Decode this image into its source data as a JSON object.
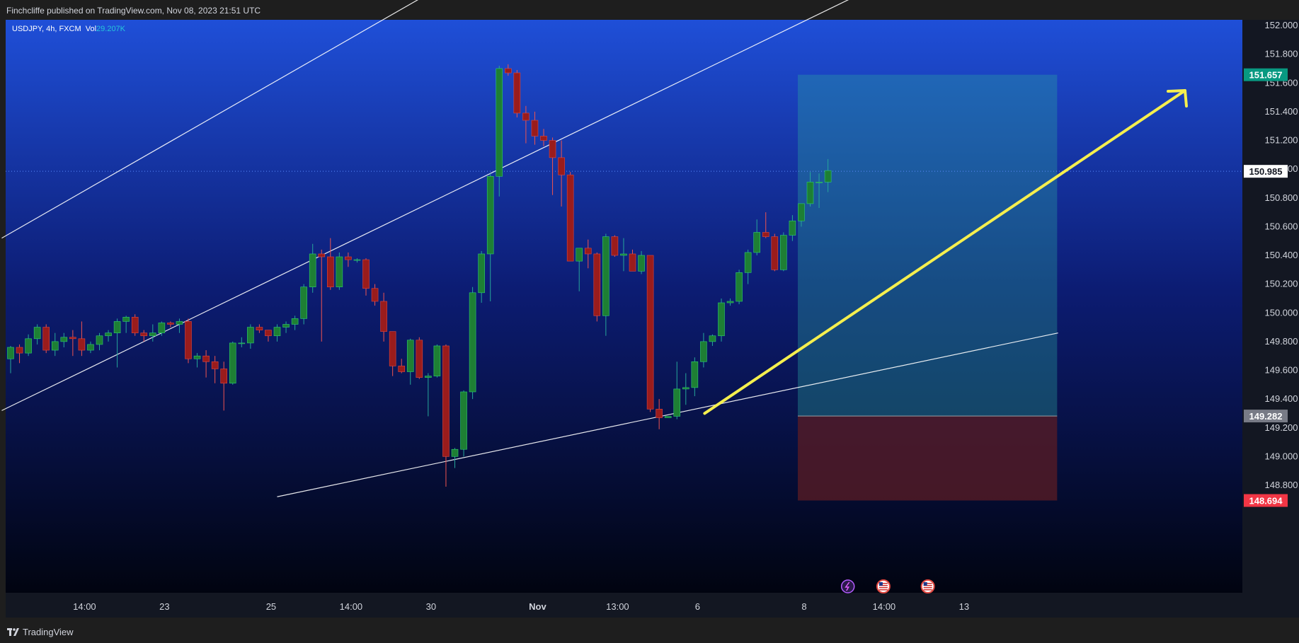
{
  "header": {
    "attribution": "Finchcliffe published on TradingView.com, Nov 08, 2023 21:51 UTC"
  },
  "footer": {
    "brand": "TradingView"
  },
  "legend": {
    "symbol": "USDJPY, 4h, FXCM",
    "vol_label": "Vol",
    "vol_value": "29.207K"
  },
  "colors": {
    "up": "#26a69a",
    "down": "#ef5350",
    "up_body": "#1e7f34",
    "down_body": "#9a1c1c",
    "profit_zone": "#2aa6a0",
    "loss_zone": "#5b1c24",
    "arrow": "#f5ef4e",
    "profit_tag": "#089981",
    "loss_tag": "#f23645",
    "entry_tag": "#787b86"
  },
  "chart_data": {
    "type": "candlestick",
    "symbol": "USDJPY",
    "interval": "4h",
    "source": "FXCM",
    "ylim": [
      148.6,
      152.1
    ],
    "y_ticks": [
      "152.000",
      "151.800",
      "151.600",
      "151.400",
      "151.200",
      "151.000",
      "150.800",
      "150.600",
      "150.400",
      "150.200",
      "150.000",
      "149.800",
      "149.600",
      "149.400",
      "149.200",
      "149.000",
      "148.800"
    ],
    "x_ticks": [
      {
        "label": "14:00",
        "bar": 8
      },
      {
        "label": "23",
        "bar": 17
      },
      {
        "label": "25",
        "bar": 29
      },
      {
        "label": "14:00",
        "bar": 38
      },
      {
        "label": "30",
        "bar": 47
      },
      {
        "label": "Nov",
        "bar": 59
      },
      {
        "label": "13:00",
        "bar": 68
      },
      {
        "label": "6",
        "bar": 77
      },
      {
        "label": "8",
        "bar": 89
      },
      {
        "label": "14:00",
        "bar": 98
      },
      {
        "label": "13",
        "bar": 107
      }
    ],
    "current_price": "150.985",
    "candles": [
      [
        149.68,
        149.77,
        149.58,
        149.76
      ],
      [
        149.76,
        149.78,
        149.65,
        149.72
      ],
      [
        149.72,
        149.85,
        149.7,
        149.82
      ],
      [
        149.82,
        149.92,
        149.78,
        149.9
      ],
      [
        149.9,
        149.92,
        149.72,
        149.74
      ],
      [
        149.74,
        149.86,
        149.7,
        149.8
      ],
      [
        149.8,
        149.86,
        149.76,
        149.83
      ],
      [
        149.83,
        149.88,
        149.7,
        149.82
      ],
      [
        149.82,
        149.94,
        149.7,
        149.74
      ],
      [
        149.74,
        149.8,
        149.72,
        149.78
      ],
      [
        149.78,
        149.86,
        149.74,
        149.84
      ],
      [
        149.84,
        149.88,
        149.8,
        149.86
      ],
      [
        149.86,
        149.96,
        149.62,
        149.94
      ],
      [
        149.94,
        149.98,
        149.86,
        149.97
      ],
      [
        149.97,
        149.99,
        149.84,
        149.86
      ],
      [
        149.86,
        149.88,
        149.8,
        149.84
      ],
      [
        149.84,
        149.92,
        149.8,
        149.86
      ],
      [
        149.86,
        149.94,
        149.84,
        149.93
      ],
      [
        149.93,
        149.94,
        149.9,
        149.92
      ],
      [
        149.92,
        149.96,
        149.86,
        149.94
      ],
      [
        149.94,
        149.96,
        149.65,
        149.68
      ],
      [
        149.68,
        149.72,
        149.62,
        149.7
      ],
      [
        149.7,
        149.74,
        149.55,
        149.66
      ],
      [
        149.66,
        149.7,
        149.51,
        149.61
      ],
      [
        149.61,
        149.66,
        149.32,
        149.51
      ],
      [
        149.51,
        149.8,
        149.5,
        149.79
      ],
      [
        149.79,
        149.83,
        149.76,
        149.79
      ],
      [
        149.79,
        149.92,
        149.75,
        149.9
      ],
      [
        149.9,
        149.92,
        149.86,
        149.88
      ],
      [
        149.88,
        149.88,
        149.8,
        149.84
      ],
      [
        149.84,
        149.92,
        149.8,
        149.9
      ],
      [
        149.9,
        149.94,
        149.86,
        149.92
      ],
      [
        149.92,
        149.98,
        149.88,
        149.96
      ],
      [
        149.96,
        150.2,
        149.92,
        150.18
      ],
      [
        150.18,
        150.48,
        150.14,
        150.41
      ],
      [
        150.41,
        150.44,
        149.8,
        150.39
      ],
      [
        150.39,
        150.52,
        150.16,
        150.18
      ],
      [
        150.18,
        150.42,
        150.16,
        150.39
      ],
      [
        150.39,
        150.42,
        150.32,
        150.37
      ],
      [
        150.37,
        150.38,
        150.35,
        150.37
      ],
      [
        150.37,
        150.38,
        150.12,
        150.17
      ],
      [
        150.17,
        150.2,
        150.05,
        150.08
      ],
      [
        150.08,
        150.14,
        149.8,
        149.87
      ],
      [
        149.87,
        149.87,
        149.56,
        149.63
      ],
      [
        149.63,
        149.68,
        149.58,
        149.59
      ],
      [
        149.59,
        149.82,
        149.5,
        149.81
      ],
      [
        149.81,
        149.83,
        149.54,
        149.55
      ],
      [
        149.55,
        149.58,
        149.28,
        149.56
      ],
      [
        149.56,
        149.78,
        149.55,
        149.77
      ],
      [
        149.77,
        149.78,
        148.79,
        149.0
      ],
      [
        149.0,
        149.06,
        148.92,
        149.05
      ],
      [
        149.05,
        149.46,
        149.0,
        149.45
      ],
      [
        149.45,
        150.18,
        149.4,
        150.14
      ],
      [
        150.14,
        150.43,
        150.07,
        150.41
      ],
      [
        150.41,
        150.97,
        150.08,
        150.95
      ],
      [
        150.95,
        151.72,
        150.81,
        151.7
      ],
      [
        151.7,
        151.73,
        151.65,
        151.67
      ],
      [
        151.67,
        151.69,
        151.36,
        151.39
      ],
      [
        151.39,
        151.44,
        151.18,
        151.34
      ],
      [
        151.34,
        151.4,
        151.17,
        151.23
      ],
      [
        151.23,
        151.28,
        151.16,
        151.2
      ],
      [
        151.2,
        151.22,
        150.82,
        151.08
      ],
      [
        151.08,
        151.2,
        150.74,
        150.96
      ],
      [
        150.96,
        150.98,
        150.36,
        150.36
      ],
      [
        150.36,
        150.45,
        150.15,
        150.45
      ],
      [
        150.45,
        150.51,
        150.31,
        150.41
      ],
      [
        150.41,
        150.42,
        149.94,
        149.98
      ],
      [
        149.98,
        150.55,
        149.84,
        150.53
      ],
      [
        150.53,
        150.54,
        150.39,
        150.4
      ],
      [
        150.4,
        150.52,
        150.29,
        150.41
      ],
      [
        150.41,
        150.44,
        150.29,
        150.29
      ],
      [
        150.29,
        150.43,
        150.27,
        150.4
      ],
      [
        150.4,
        150.4,
        149.31,
        149.33
      ],
      [
        149.33,
        149.4,
        149.19,
        149.27
      ],
      [
        149.27,
        149.28,
        149.27,
        149.28
      ],
      [
        149.28,
        149.66,
        149.26,
        149.47
      ],
      [
        149.47,
        149.58,
        149.36,
        149.48
      ],
      [
        149.48,
        149.69,
        149.42,
        149.66
      ],
      [
        149.66,
        149.86,
        149.62,
        149.8
      ],
      [
        149.8,
        149.85,
        149.77,
        149.84
      ],
      [
        149.84,
        150.1,
        149.8,
        150.07
      ],
      [
        150.07,
        150.1,
        150.05,
        150.08
      ],
      [
        150.08,
        150.3,
        150.06,
        150.28
      ],
      [
        150.28,
        150.44,
        150.2,
        150.42
      ],
      [
        150.42,
        150.65,
        150.4,
        150.56
      ],
      [
        150.56,
        150.7,
        150.52,
        150.53
      ],
      [
        150.53,
        150.55,
        150.29,
        150.3
      ],
      [
        150.3,
        150.56,
        150.29,
        150.54
      ],
      [
        150.54,
        150.68,
        150.5,
        150.64
      ],
      [
        150.64,
        150.76,
        150.6,
        150.76
      ],
      [
        150.76,
        150.98,
        150.74,
        150.91
      ],
      [
        150.91,
        150.97,
        150.73,
        150.91
      ],
      [
        150.91,
        151.07,
        150.84,
        150.99
      ]
    ],
    "position": {
      "type": "long",
      "entry": 149.282,
      "target": 151.657,
      "stop": 148.694,
      "entry_label": "149.282",
      "target_label": "151.657",
      "stop_label": "148.694",
      "start_bar": 75,
      "end_bar": 117
    },
    "trendlines": [
      {
        "from": [
          -1,
          150.52
        ],
        "to": [
          53.5,
          152.45
        ]
      },
      {
        "from": [
          -1,
          149.32
        ],
        "to": [
          119,
          152.92
        ]
      },
      {
        "from": [
          30,
          148.72
        ],
        "to": [
          117.9,
          149.86
        ]
      }
    ],
    "arrow": {
      "from": [
        77,
        149.3
      ],
      "to": [
        119,
        151.64
      ]
    },
    "event_icons": [
      {
        "bar": 94,
        "kind": "lightning"
      },
      {
        "bar": 98,
        "kind": "us-flag"
      },
      {
        "bar": 103,
        "kind": "us-flag"
      }
    ]
  }
}
